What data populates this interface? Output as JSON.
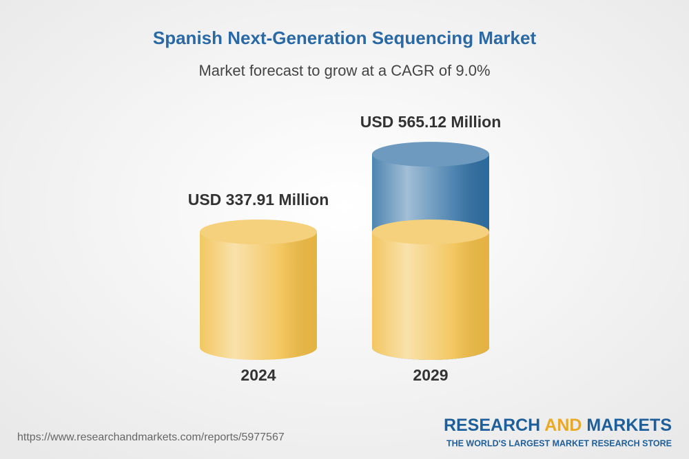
{
  "chart_data": {
    "type": "cylinder",
    "title": "Spanish Next-Generation Sequencing Market",
    "subtitle": "Market forecast to grow at a CAGR of 9.0%",
    "categories": [
      "2024",
      "2029"
    ],
    "values": [
      337.91,
      565.12
    ],
    "value_labels": [
      "USD 337.91 Million",
      "USD 565.12 Million"
    ],
    "colors": [
      "#f1bd45",
      "#2f6fa3"
    ]
  },
  "footer": {
    "url": "https://www.researchandmarkets.com/reports/5977567",
    "brand": [
      "RESEARCH",
      "AND",
      "MARKETS"
    ],
    "tagline": "THE WORLD'S LARGEST MARKET RESEARCH STORE"
  }
}
